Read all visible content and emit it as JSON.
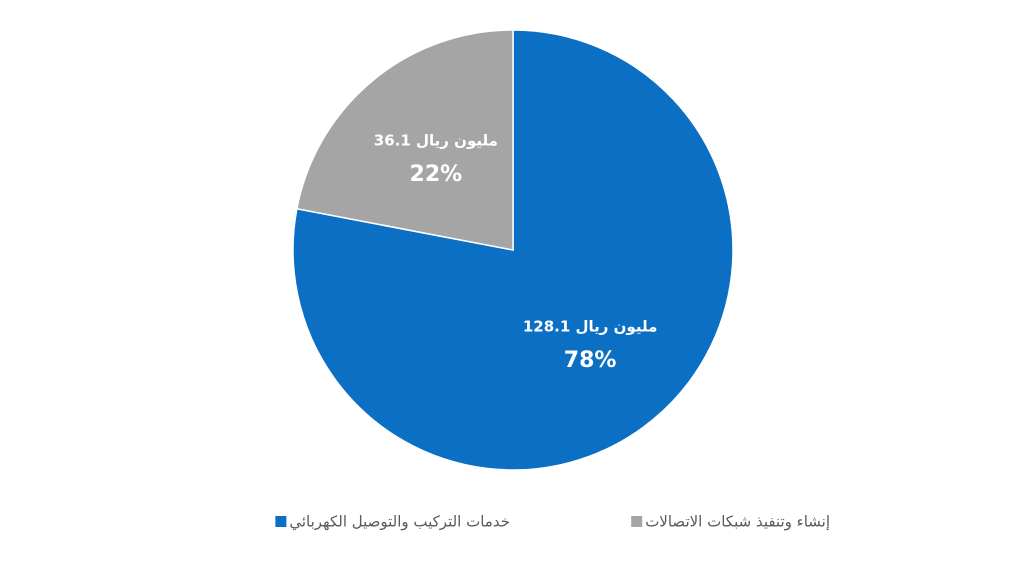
{
  "chart_data": {
    "type": "pie",
    "categories": [
      "خدمات التركيب والتوصيل الكهربائي",
      "إنشاء وتنفيذ شبكات الاتصالات"
    ],
    "values": [
      78,
      22
    ],
    "value_labels": [
      "78%",
      "22%"
    ],
    "amounts": [
      128.1,
      36.1
    ],
    "amount_labels": [
      "128.1 مليون ريال",
      "36.1 مليون ريال"
    ],
    "colors": [
      "#0b6fc3",
      "#a5a5a5"
    ],
    "legend": "bottom"
  }
}
